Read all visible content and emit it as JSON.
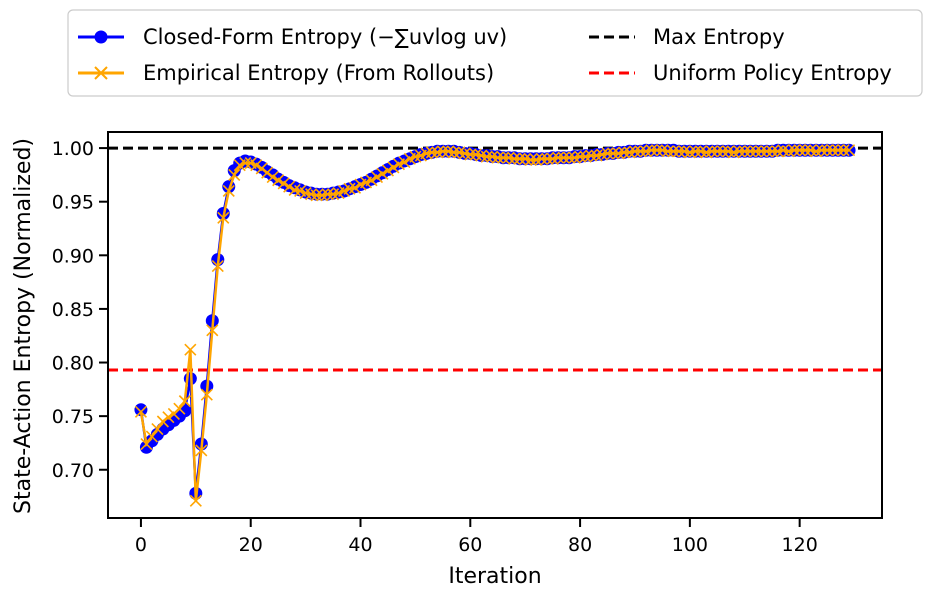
{
  "colors": {
    "closed_form": "#0000ff",
    "empirical": "#ffa500",
    "max_line": "#000000",
    "uniform_line": "#ff0000"
  },
  "chart_data": {
    "type": "line",
    "title": "",
    "xlabel": "Iteration",
    "ylabel": "State-Action Entropy (Normalized)",
    "xlim": [
      -6,
      135
    ],
    "ylim": [
      0.655,
      1.015
    ],
    "xticks": [
      0,
      20,
      40,
      60,
      80,
      100,
      120
    ],
    "yticks": [
      0.7,
      0.75,
      0.8,
      0.85,
      0.9,
      0.95,
      1.0
    ],
    "xtick_labels": [
      "0",
      "20",
      "40",
      "60",
      "80",
      "100",
      "120"
    ],
    "ytick_labels": [
      "0.70",
      "0.75",
      "0.80",
      "0.85",
      "0.90",
      "0.95",
      "1.00"
    ],
    "grid": false,
    "legend_placement": "above plot, two columns",
    "legend": {
      "closed_form": "Closed-Form Entropy (−∑uvlog uv)",
      "empirical": "Empirical Entropy (From Rollouts)",
      "max": "Max Entropy",
      "uniform": "Uniform Policy Entropy"
    },
    "hlines": [
      {
        "name": "Max Entropy",
        "y": 1.0,
        "style": "dashed"
      },
      {
        "name": "Uniform Policy Entropy",
        "y": 0.793,
        "style": "dashed"
      }
    ],
    "x": [
      0,
      1,
      2,
      3,
      4,
      5,
      6,
      7,
      8,
      9,
      10,
      11,
      12,
      13,
      14,
      15,
      16,
      17,
      18,
      19,
      20,
      21,
      22,
      23,
      24,
      25,
      26,
      27,
      28,
      29,
      30,
      31,
      32,
      33,
      34,
      35,
      36,
      37,
      38,
      39,
      40,
      41,
      42,
      43,
      44,
      45,
      46,
      47,
      48,
      49,
      50,
      51,
      52,
      53,
      54,
      55,
      56,
      57,
      58,
      59,
      60,
      61,
      62,
      63,
      64,
      65,
      66,
      67,
      68,
      69,
      70,
      71,
      72,
      73,
      74,
      75,
      76,
      77,
      78,
      79,
      80,
      81,
      82,
      83,
      84,
      85,
      86,
      87,
      88,
      89,
      90,
      91,
      92,
      93,
      94,
      95,
      96,
      97,
      98,
      99,
      100,
      101,
      102,
      103,
      104,
      105,
      106,
      107,
      108,
      109,
      110,
      111,
      112,
      113,
      114,
      115,
      116,
      117,
      118,
      119,
      120,
      121,
      122,
      123,
      124,
      125,
      126,
      127,
      128,
      129
    ],
    "series": [
      {
        "name": "Closed-Form Entropy (−∑uvlog uv)",
        "marker": "circle",
        "values": [
          0.756,
          0.721,
          0.727,
          0.733,
          0.738,
          0.742,
          0.746,
          0.75,
          0.755,
          0.785,
          0.678,
          0.724,
          0.778,
          0.839,
          0.896,
          0.939,
          0.964,
          0.979,
          0.986,
          0.988,
          0.987,
          0.985,
          0.982,
          0.978,
          0.975,
          0.971,
          0.968,
          0.965,
          0.963,
          0.961,
          0.959,
          0.958,
          0.957,
          0.957,
          0.957,
          0.958,
          0.959,
          0.96,
          0.962,
          0.964,
          0.966,
          0.968,
          0.971,
          0.974,
          0.977,
          0.98,
          0.983,
          0.986,
          0.988,
          0.99,
          0.992,
          0.994,
          0.995,
          0.996,
          0.997,
          0.997,
          0.997,
          0.997,
          0.996,
          0.995,
          0.995,
          0.994,
          0.993,
          0.993,
          0.992,
          0.992,
          0.991,
          0.991,
          0.991,
          0.99,
          0.99,
          0.99,
          0.99,
          0.99,
          0.99,
          0.991,
          0.991,
          0.991,
          0.991,
          0.992,
          0.992,
          0.993,
          0.993,
          0.994,
          0.994,
          0.995,
          0.995,
          0.996,
          0.996,
          0.997,
          0.997,
          0.997,
          0.998,
          0.998,
          0.998,
          0.998,
          0.998,
          0.998,
          0.997,
          0.997,
          0.997,
          0.997,
          0.997,
          0.997,
          0.997,
          0.997,
          0.997,
          0.997,
          0.997,
          0.997,
          0.997,
          0.997,
          0.997,
          0.997,
          0.997,
          0.997,
          0.998,
          0.998,
          0.998,
          0.998,
          0.998,
          0.998,
          0.998,
          0.998,
          0.998,
          0.998,
          0.998,
          0.998,
          0.998,
          0.998
        ]
      },
      {
        "name": "Empirical Entropy (From Rollouts)",
        "marker": "x",
        "values": [
          0.754,
          0.724,
          0.731,
          0.738,
          0.745,
          0.749,
          0.752,
          0.757,
          0.764,
          0.812,
          0.671,
          0.718,
          0.77,
          0.83,
          0.89,
          0.935,
          0.96,
          0.975,
          0.984,
          0.986,
          0.986,
          0.984,
          0.981,
          0.977,
          0.973,
          0.97,
          0.967,
          0.964,
          0.961,
          0.96,
          0.958,
          0.957,
          0.956,
          0.956,
          0.957,
          0.957,
          0.958,
          0.96,
          0.962,
          0.963,
          0.966,
          0.968,
          0.97,
          0.973,
          0.976,
          0.979,
          0.982,
          0.985,
          0.987,
          0.99,
          0.992,
          0.993,
          0.995,
          0.996,
          0.996,
          0.997,
          0.997,
          0.996,
          0.996,
          0.995,
          0.994,
          0.994,
          0.993,
          0.992,
          0.992,
          0.991,
          0.991,
          0.991,
          0.99,
          0.99,
          0.99,
          0.989,
          0.989,
          0.99,
          0.99,
          0.99,
          0.991,
          0.991,
          0.991,
          0.991,
          0.992,
          0.992,
          0.993,
          0.993,
          0.994,
          0.995,
          0.995,
          0.995,
          0.996,
          0.996,
          0.997,
          0.997,
          0.997,
          0.998,
          0.998,
          0.998,
          0.997,
          0.997,
          0.997,
          0.997,
          0.996,
          0.997,
          0.997,
          0.996,
          0.997,
          0.997,
          0.997,
          0.997,
          0.996,
          0.997,
          0.997,
          0.997,
          0.997,
          0.997,
          0.997,
          0.997,
          0.997,
          0.998,
          0.997,
          0.998,
          0.998,
          0.998,
          0.998,
          0.997,
          0.998,
          0.998,
          0.998,
          0.998,
          0.998,
          0.998
        ]
      }
    ]
  }
}
